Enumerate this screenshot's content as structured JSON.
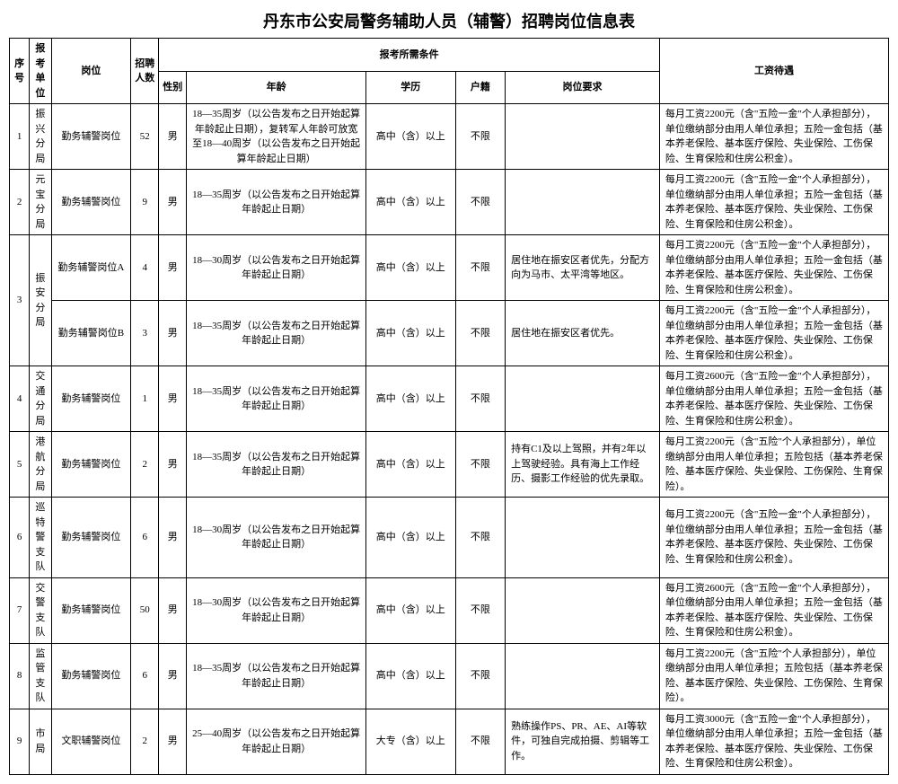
{
  "title": "丹东市公安局警务辅助人员（辅警）招聘岗位信息表",
  "header": {
    "idx": "序号",
    "unit": "报考单位",
    "post": "岗位",
    "count": "招聘人数",
    "cond": "报考所需条件",
    "sex": "性别",
    "age": "年龄",
    "edu": "学历",
    "hukou": "户籍",
    "req": "岗位要求",
    "salary": "工资待遇"
  },
  "rows": [
    {
      "idx": "1",
      "unit": "振兴分局",
      "post": "勤务辅警岗位",
      "count": "52",
      "sex": "男",
      "age": "18—35周岁（以公告发布之日开始起算年龄起止日期），复转军人年龄可放宽至18—40周岁（以公告发布之日开始起算年龄起止日期）",
      "edu": "高中（含）以上",
      "hukou": "不限",
      "req": "",
      "salary": "每月工资2200元（含\"五险一金\"个人承担部分），单位缴纳部分由用人单位承担；五险一金包括（基本养老保险、基本医疗保险、失业保险、工伤保险、生育保险和住房公积金）。"
    },
    {
      "idx": "2",
      "unit": "元宝分局",
      "post": "勤务辅警岗位",
      "count": "9",
      "sex": "男",
      "age": "18—35周岁（以公告发布之日开始起算年龄起止日期）",
      "edu": "高中（含）以上",
      "hukou": "不限",
      "req": "",
      "salary": "每月工资2200元（含\"五险一金\"个人承担部分），单位缴纳部分由用人单位承担；五险一金包括（基本养老保险、基本医疗保险、失业保险、工伤保险、生育保险和住房公积金）。"
    },
    {
      "idx": "3",
      "unit": "振安分局",
      "sub": [
        {
          "post": "勤务辅警岗位A",
          "count": "4",
          "sex": "男",
          "age": "18—30周岁（以公告发布之日开始起算年龄起止日期）",
          "edu": "高中（含）以上",
          "hukou": "不限",
          "req": "居住地在振安区者优先，分配方向为马市、太平湾等地区。",
          "salary": "每月工资2200元（含\"五险一金\"个人承担部分），单位缴纳部分由用人单位承担；五险一金包括（基本养老保险、基本医疗保险、失业保险、工伤保险、生育保险和住房公积金）。"
        },
        {
          "post": "勤务辅警岗位B",
          "count": "3",
          "sex": "男",
          "age": "18—35周岁（以公告发布之日开始起算年龄起止日期）",
          "edu": "高中（含）以上",
          "hukou": "不限",
          "req": "居住地在振安区者优先。",
          "salary": "每月工资2200元（含\"五险一金\"个人承担部分），单位缴纳部分由用人单位承担；五险一金包括（基本养老保险、基本医疗保险、失业保险、工伤保险、生育保险和住房公积金）。"
        }
      ]
    },
    {
      "idx": "4",
      "unit": "交通分局",
      "post": "勤务辅警岗位",
      "count": "1",
      "sex": "男",
      "age": "18—35周岁（以公告发布之日开始起算年龄起止日期）",
      "edu": "高中（含）以上",
      "hukou": "不限",
      "req": "",
      "salary": "每月工资2600元（含\"五险一金\"个人承担部分），单位缴纳部分由用人单位承担；五险一金包括（基本养老保险、基本医疗保险、失业保险、工伤保险、生育保险和住房公积金）。"
    },
    {
      "idx": "5",
      "unit": "港航分局",
      "post": "勤务辅警岗位",
      "count": "2",
      "sex": "男",
      "age": "18—35周岁（以公告发布之日开始起算年龄起止日期）",
      "edu": "高中（含）以上",
      "hukou": "不限",
      "req": "持有C1及以上驾照，并有2年以上驾驶经验。具有海上工作经历、摄影工作经验的优先录取。",
      "salary": "每月工资2200元（含\"五险\"个人承担部分），单位缴纳部分由用人单位承担；五险包括（基本养老保险、基本医疗保险、失业保险、工伤保险、生育保险）。"
    },
    {
      "idx": "6",
      "unit": "巡特警支队",
      "post": "勤务辅警岗位",
      "count": "6",
      "sex": "男",
      "age": "18—30周岁（以公告发布之日开始起算年龄起止日期）",
      "edu": "高中（含）以上",
      "hukou": "不限",
      "req": "",
      "salary": "每月工资2200元（含\"五险一金\"个人承担部分），单位缴纳部分由用人单位承担；五险一金包括（基本养老保险、基本医疗保险、失业保险、工伤保险、生育保险和住房公积金）。"
    },
    {
      "idx": "7",
      "unit": "交警支队",
      "post": "勤务辅警岗位",
      "count": "50",
      "sex": "男",
      "age": "18—30周岁（以公告发布之日开始起算年龄起止日期）",
      "edu": "高中（含）以上",
      "hukou": "不限",
      "req": "",
      "salary": "每月工资2600元（含\"五险一金\"个人承担部分），单位缴纳部分由用人单位承担；五险一金包括（基本养老保险、基本医疗保险、失业保险、工伤保险、生育保险和住房公积金）。"
    },
    {
      "idx": "8",
      "unit": "监管支队",
      "post": "勤务辅警岗位",
      "count": "6",
      "sex": "男",
      "age": "18—35周岁（以公告发布之日开始起算年龄起止日期）",
      "edu": "高中（含）以上",
      "hukou": "不限",
      "req": "",
      "salary": "每月工资2200元（含\"五险\"个人承担部分），单位缴纳部分由用人单位承担；五险包括（基本养老保险、基本医疗保险、失业保险、工伤保险、生育保险）。"
    },
    {
      "idx": "9",
      "unit": "市局",
      "post": "文职辅警岗位",
      "count": "2",
      "sex": "男",
      "age": "25—40周岁（以公告发布之日开始起算年龄起止日期）",
      "edu": "大专（含）以上",
      "hukou": "不限",
      "req": "熟练操作PS、PR、AE、AI等软件，可独自完成拍摄、剪辑等工作。",
      "salary": "每月工资3000元（含\"五险一金\"个人承担部分），单位缴纳部分由用人单位承担；五险一金包括（基本养老保险、基本医疗保险、失业保险、工伤保险、生育保险和住房公积金）。"
    }
  ]
}
